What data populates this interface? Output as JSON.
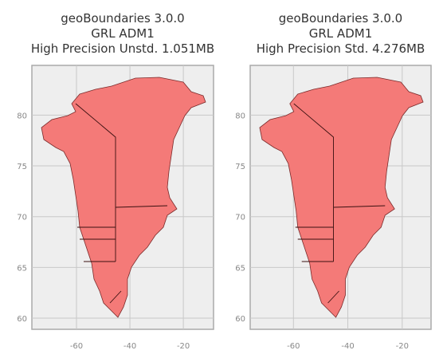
{
  "chart_data": [
    {
      "type": "map",
      "title": [
        "geoBoundaries 3.0.0",
        "GRL ADM1",
        "High Precision Unstd. 1.051MB"
      ],
      "xlim": [
        -76.7,
        -8.7
      ],
      "ylim": [
        58.9,
        84.9
      ],
      "xticks": [
        -60,
        -40,
        -20
      ],
      "yticks": [
        60,
        65,
        70,
        75,
        80
      ],
      "grid": true
    },
    {
      "type": "map",
      "title": [
        "geoBoundaries 3.0.0",
        "GRL ADM1",
        "High Precision Std. 4.276MB"
      ],
      "xlim": [
        -75.9,
        -9.4
      ],
      "ylim": [
        58.9,
        84.9
      ],
      "xticks": [
        -60,
        -40,
        -20
      ],
      "yticks": [
        60,
        65,
        70,
        75,
        80
      ],
      "grid": true
    }
  ]
}
